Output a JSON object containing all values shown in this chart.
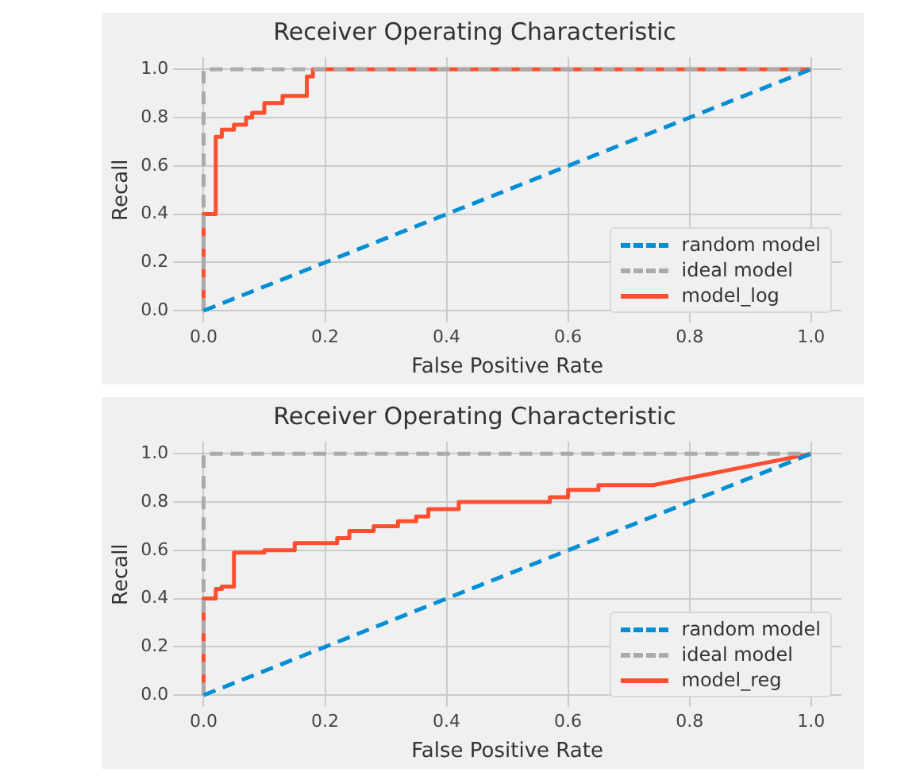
{
  "chart_data": [
    {
      "type": "line",
      "title": "Receiver Operating Characteristic",
      "xlabel": "False Positive Rate",
      "ylabel": "Recall",
      "xlim": [
        -0.05,
        1.05
      ],
      "ylim": [
        -0.05,
        1.05
      ],
      "xticks": [
        {
          "value": 0,
          "label": "0.0"
        },
        {
          "value": 0.2,
          "label": "0.2"
        },
        {
          "value": 0.4,
          "label": "0.4"
        },
        {
          "value": 0.6,
          "label": "0.6"
        },
        {
          "value": 0.8,
          "label": "0.8"
        },
        {
          "value": 1,
          "label": "1.0"
        }
      ],
      "yticks": [
        {
          "value": 0,
          "label": "0.0"
        },
        {
          "value": 0.2,
          "label": "0.2"
        },
        {
          "value": 0.4,
          "label": "0.4"
        },
        {
          "value": 0.6,
          "label": "0.6"
        },
        {
          "value": 0.8,
          "label": "0.8"
        },
        {
          "value": 1,
          "label": "1.0"
        }
      ],
      "grid": true,
      "legend": "bottom right",
      "marker": "none",
      "series": [
        {
          "name": "random model",
          "color": "#008fd5",
          "line_style": "dashed",
          "x": [
            0,
            1
          ],
          "values": [
            0,
            1
          ]
        },
        {
          "name": "ideal model",
          "color": "#aaaaaa",
          "line_style": "dashed",
          "x": [
            0,
            0,
            1
          ],
          "values": [
            0,
            1,
            1
          ]
        },
        {
          "name": "model_log",
          "color": "#fc4f30",
          "line_style": "solid",
          "x": [
            0,
            0,
            0.02,
            0.02,
            0.03,
            0.03,
            0.05,
            0.05,
            0.07,
            0.07,
            0.08,
            0.08,
            0.1,
            0.1,
            0.13,
            0.13,
            0.17,
            0.17,
            0.18,
            0.18,
            1
          ],
          "values": [
            0,
            0.4,
            0.4,
            0.72,
            0.72,
            0.75,
            0.75,
            0.77,
            0.77,
            0.8,
            0.8,
            0.82,
            0.82,
            0.86,
            0.86,
            0.89,
            0.89,
            0.97,
            0.97,
            1,
            1
          ]
        }
      ]
    },
    {
      "type": "line",
      "title": "Receiver Operating Characteristic",
      "xlabel": "False Positive Rate",
      "ylabel": "Recall",
      "xlim": [
        -0.05,
        1.05
      ],
      "ylim": [
        -0.05,
        1.05
      ],
      "xticks": [
        {
          "value": 0,
          "label": "0.0"
        },
        {
          "value": 0.2,
          "label": "0.2"
        },
        {
          "value": 0.4,
          "label": "0.4"
        },
        {
          "value": 0.6,
          "label": "0.6"
        },
        {
          "value": 0.8,
          "label": "0.8"
        },
        {
          "value": 1,
          "label": "1.0"
        }
      ],
      "yticks": [
        {
          "value": 0,
          "label": "0.0"
        },
        {
          "value": 0.2,
          "label": "0.2"
        },
        {
          "value": 0.4,
          "label": "0.4"
        },
        {
          "value": 0.6,
          "label": "0.6"
        },
        {
          "value": 0.8,
          "label": "0.8"
        },
        {
          "value": 1,
          "label": "1.0"
        }
      ],
      "grid": true,
      "legend": "bottom right",
      "marker": "none",
      "series": [
        {
          "name": "random model",
          "color": "#008fd5",
          "line_style": "dashed",
          "x": [
            0,
            1
          ],
          "values": [
            0,
            1
          ]
        },
        {
          "name": "ideal model",
          "color": "#aaaaaa",
          "line_style": "dashed",
          "x": [
            0,
            0,
            1
          ],
          "values": [
            0,
            1,
            1
          ]
        },
        {
          "name": "model_reg",
          "color": "#fc4f30",
          "line_style": "solid",
          "x": [
            0,
            0,
            0.02,
            0.02,
            0.03,
            0.03,
            0.05,
            0.05,
            0.1,
            0.1,
            0.15,
            0.15,
            0.22,
            0.22,
            0.24,
            0.24,
            0.28,
            0.28,
            0.32,
            0.32,
            0.35,
            0.35,
            0.37,
            0.37,
            0.42,
            0.42,
            0.57,
            0.57,
            0.6,
            0.6,
            0.65,
            0.65,
            0.74,
            1
          ],
          "values": [
            0,
            0.4,
            0.4,
            0.44,
            0.44,
            0.45,
            0.45,
            0.59,
            0.59,
            0.6,
            0.6,
            0.63,
            0.63,
            0.65,
            0.65,
            0.68,
            0.68,
            0.7,
            0.7,
            0.72,
            0.72,
            0.74,
            0.74,
            0.77,
            0.77,
            0.8,
            0.8,
            0.82,
            0.82,
            0.85,
            0.85,
            0.87,
            0.87,
            1
          ]
        }
      ]
    }
  ]
}
